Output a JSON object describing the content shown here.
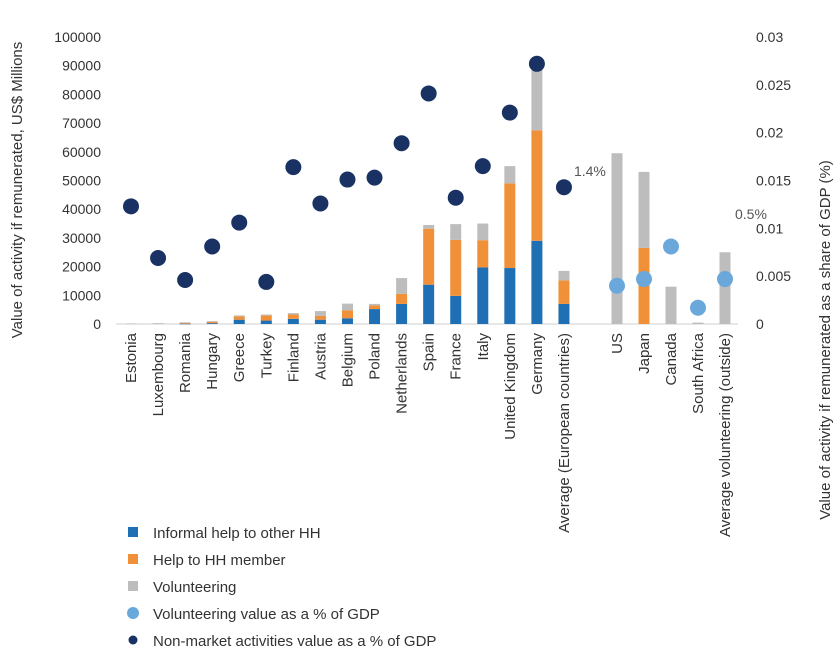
{
  "chart_data": {
    "type": "bar",
    "stacked": true,
    "categories": [
      "Estonia",
      "Luxembourg",
      "Romania",
      "Hungary",
      "Greece",
      "Turkey",
      "Finland",
      "Austria",
      "Belgium",
      "Poland",
      "Netherlands",
      "Spain",
      "France",
      "Italy",
      "United Kingdom",
      "Germany",
      "Average (European countries)",
      "US",
      "Japan",
      "Canada",
      "South Africa",
      "Average volunteering (outside)"
    ],
    "ylabel": "Value of activity if remunerated, US$ Millions",
    "y2label": "Value of activity if remunerated as a share  of GDP (%)",
    "ylim": [
      0,
      100000
    ],
    "y2lim": [
      0,
      0.03
    ],
    "y_ticks": [
      "0",
      "10000",
      "20000",
      "30000",
      "40000",
      "50000",
      "60000",
      "70000",
      "80000",
      "90000",
      "100000"
    ],
    "y2_ticks": [
      "0",
      "0.005",
      "0.01",
      "0.015",
      "0.02",
      "0.025",
      "0.03"
    ],
    "series": [
      {
        "name": "Informal help to other HH",
        "kind": "bar",
        "axis": "left",
        "color": "#1f6fb4",
        "values": [
          0,
          0,
          100,
          300,
          1500,
          1200,
          1800,
          1500,
          2000,
          5200,
          7000,
          13700,
          9800,
          19700,
          19500,
          29000,
          7000,
          0,
          0,
          0,
          0,
          0
        ]
      },
      {
        "name": "Help to HH member",
        "kind": "bar",
        "axis": "left",
        "color": "#f0913a",
        "values": [
          0,
          0,
          300,
          500,
          1200,
          1800,
          1500,
          1300,
          2800,
          1300,
          3500,
          19500,
          19500,
          9500,
          29500,
          38500,
          8200,
          0,
          26500,
          0,
          0,
          0
        ]
      },
      {
        "name": " Volunteering",
        "kind": "bar",
        "axis": "left",
        "color": "#bdbdbd",
        "values": [
          200,
          300,
          200,
          200,
          300,
          300,
          500,
          1700,
          2300,
          500,
          5500,
          1300,
          5500,
          5800,
          6000,
          23000,
          3300,
          59500,
          26500,
          13000,
          500,
          25000
        ]
      },
      {
        "name": "Volunteering value as a % of GDP",
        "kind": "scatter",
        "axis": "right",
        "color": "#6aa8dc",
        "values": [
          null,
          null,
          null,
          null,
          null,
          null,
          null,
          null,
          null,
          null,
          null,
          null,
          null,
          null,
          null,
          null,
          null,
          0.004,
          0.0047,
          0.0081,
          0.0017,
          0.0047
        ]
      },
      {
        "name": "Non-market activities value as a % of GDP",
        "kind": "scatter",
        "axis": "right",
        "color": "#1a3263",
        "values": [
          0.0123,
          0.0069,
          0.0046,
          0.0081,
          0.0106,
          0.0044,
          0.0164,
          0.0126,
          0.0151,
          0.0153,
          0.0189,
          0.0241,
          0.0132,
          0.0165,
          0.0221,
          0.0272,
          0.0143,
          null,
          null,
          null,
          null,
          null
        ]
      }
    ],
    "annotations": [
      {
        "text": "1.4%",
        "category": "Average (European countries)",
        "axis_value": 0.016
      },
      {
        "text": "0.5%",
        "category": "Average volunteering (outside)",
        "axis_value": 0.0115
      }
    ],
    "legend": "bottom-left",
    "grid": false
  }
}
